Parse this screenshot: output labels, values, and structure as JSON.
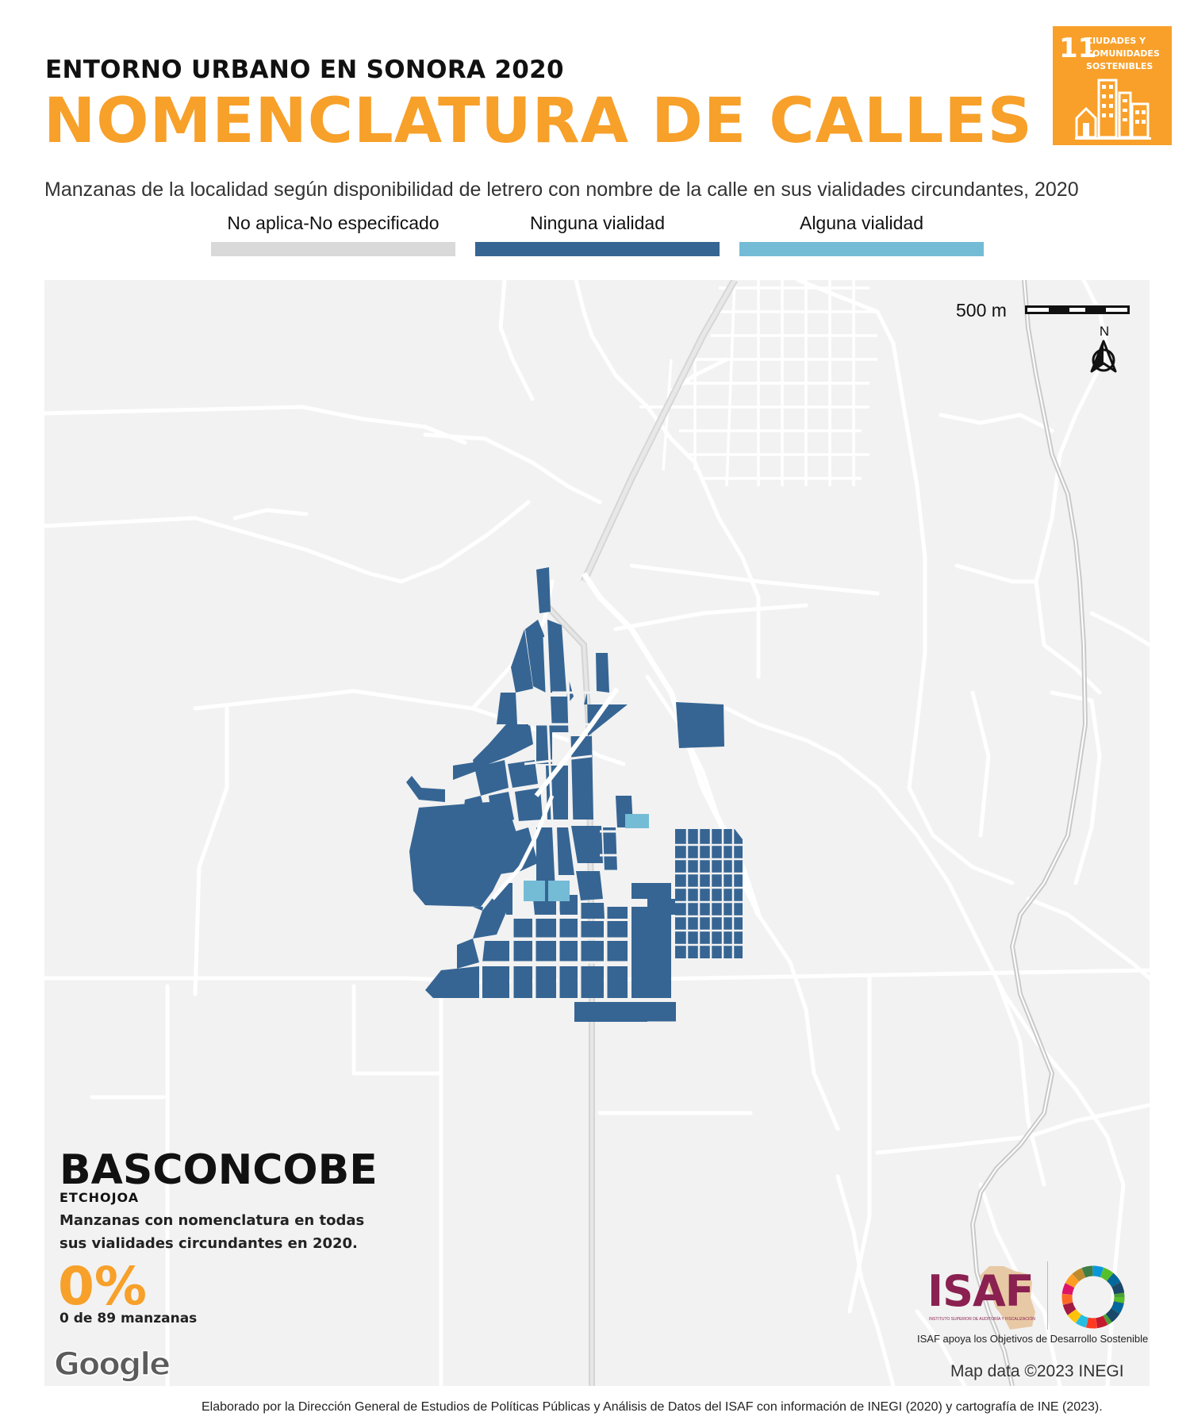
{
  "header": {
    "kicker": "ENTORNO URBANO EN SONORA 2020",
    "title": "NOMENCLATURA DE CALLES",
    "subtitle": "Manzanas de la localidad según disponibilidad de letrero con nombre de la calle en sus vialidades circundantes, 2020"
  },
  "sdg_badge": {
    "number": "11",
    "label_lines": [
      "CIUDADES Y",
      "COMUNIDADES",
      "SOSTENIBLES"
    ],
    "color": "#f8a02a",
    "icon": "city-buildings-icon"
  },
  "legend": [
    {
      "label": "No aplica-No especificado",
      "color": "#d9d9d9"
    },
    {
      "label": "Ninguna vialidad",
      "color": "#366593"
    },
    {
      "label": "Alguna vialidad",
      "color": "#74bbd6"
    }
  ],
  "map": {
    "scale_label": "500 m",
    "north_label": "N",
    "attribution": "Map data ©2023 INEGI",
    "provider_logo": "Google",
    "background_color": "#f2f2f2",
    "road_color": "#ffffff"
  },
  "locality": {
    "name": "BASCONCOBE",
    "municipality": "ETCHOJOA",
    "description": "Manzanas con nomenclatura en todas sus vialidades circundantes en 2020.",
    "percent": "0%",
    "count_text": "0 de 89 manzanas"
  },
  "branding": {
    "isaf_wordmark": "ISAF",
    "isaf_fine_print": "INSTITUTO SUPERIOR DE AUDITORÍA Y FISCALIZACIÓN",
    "isaf_caption": "ISAF apoya los Objetivos de Desarrollo Sostenible",
    "accent_color": "#f7a02a",
    "isaf_color": "#8a2150"
  },
  "footer": {
    "credit": "Elaborado por la Dirección General de Estudios de Políticas Públicas y Análisis de Datos del ISAF con información de INEGI (2020) y cartografía de INE (2023)."
  }
}
